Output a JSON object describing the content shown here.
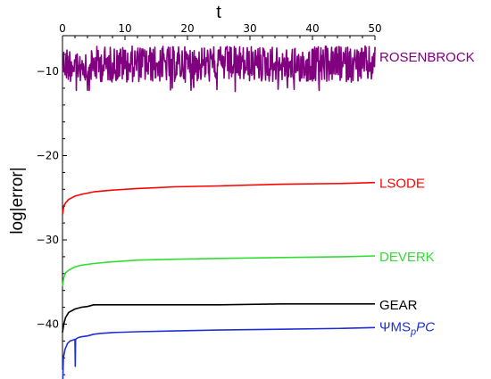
{
  "chart_data": {
    "type": "line",
    "xlabel": "t",
    "ylabel": "log|error|",
    "xlim": [
      0,
      50
    ],
    "ylim": [
      -48,
      -6
    ],
    "x_ticks": [
      0,
      10,
      20,
      30,
      40,
      50
    ],
    "y_ticks": [
      -10,
      -20,
      -30,
      -40
    ],
    "x_tick_labels": [
      "0",
      "10",
      "20",
      "30",
      "40",
      "50"
    ],
    "y_tick_labels": [
      "−10",
      "−20",
      "−30",
      "−40"
    ],
    "grid": false,
    "legend": "labels placed at right end of each series",
    "series": [
      {
        "name": "ROSENBROCK",
        "color": "#800080",
        "label_y": -8.3,
        "style": "noisy band between about -11.5 and -7 with occasional dips near -12.5",
        "x": [
          0,
          50
        ],
        "y": [
          -9,
          -9
        ]
      },
      {
        "name": "LSODE",
        "color": "#ff0000",
        "label_y": -23.3,
        "x": [
          0,
          0.2,
          0.5,
          1,
          2,
          3,
          5,
          8,
          12,
          18,
          25,
          35,
          45,
          50
        ],
        "y": [
          -27,
          -26,
          -25.6,
          -25.2,
          -24.8,
          -24.6,
          -24.3,
          -24.1,
          -23.9,
          -23.7,
          -23.6,
          -23.4,
          -23.3,
          -23.2
        ]
      },
      {
        "name": "DEVERK",
        "color": "#33dd33",
        "label_y": -32.0,
        "x": [
          0,
          0.2,
          0.5,
          1,
          2,
          3,
          5,
          8,
          12,
          18,
          25,
          35,
          45,
          50
        ],
        "y": [
          -35.5,
          -34.5,
          -33.9,
          -33.6,
          -33.2,
          -33.0,
          -32.8,
          -32.6,
          -32.4,
          -32.3,
          -32.2,
          -32.1,
          -32.0,
          -31.9
        ]
      },
      {
        "name": "GEAR",
        "color": "#000000",
        "label_y": -37.7,
        "x": [
          0,
          0.2,
          0.5,
          1,
          2,
          3,
          4,
          5,
          8,
          12,
          18,
          25,
          35,
          45,
          50
        ],
        "y": [
          -41,
          -40,
          -39.2,
          -38.6,
          -38.2,
          -38.0,
          -37.9,
          -37.7,
          -37.7,
          -37.7,
          -37.7,
          -37.7,
          -37.6,
          -37.6,
          -37.6
        ]
      },
      {
        "name": "ΨMS_pPC",
        "label_main": "ΨMS",
        "label_sub": "p",
        "label_tail": "PC",
        "color": "#1f2fd6",
        "label_y": -40.3,
        "x": [
          0,
          0.15,
          0.4,
          0.8,
          1.2,
          1.6,
          2.0,
          2.05,
          2.1,
          2.5,
          3,
          4,
          5,
          6,
          8,
          12,
          18,
          25,
          35,
          45,
          50
        ],
        "y": [
          -48,
          -44,
          -43,
          -42.3,
          -42,
          -41.9,
          -41.8,
          -45,
          -41.8,
          -41.6,
          -41.5,
          -41.4,
          -41.2,
          -41.1,
          -41.0,
          -40.9,
          -40.8,
          -40.7,
          -40.6,
          -40.5,
          -40.4
        ]
      }
    ]
  }
}
